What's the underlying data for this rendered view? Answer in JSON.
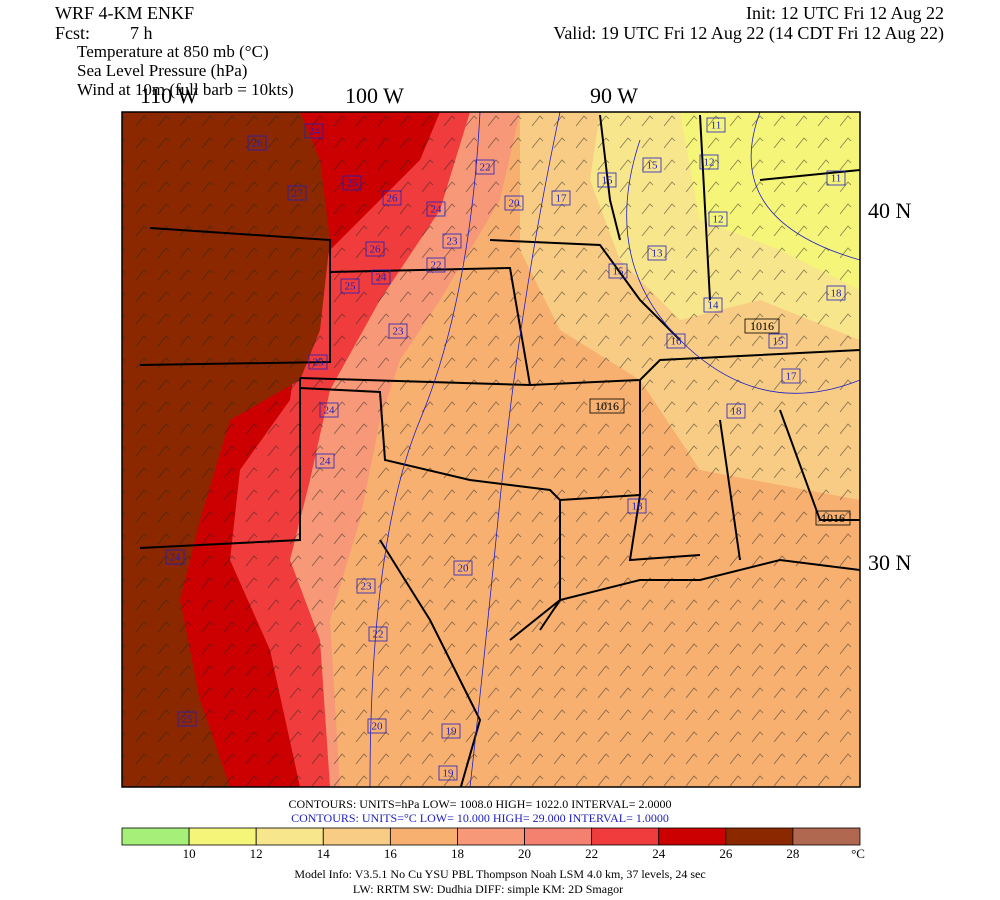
{
  "header": {
    "model": "WRF 4-KM ENKF",
    "forecast_label": "Fcst:",
    "forecast_hours": "7 h",
    "init": "Init: 12 UTC Fri 12 Aug 22",
    "valid": "Valid: 19 UTC Fri 12 Aug 22 (14 CDT Fri 12 Aug 22)",
    "fields": [
      "Temperature at 850 mb (°C)",
      "Sea Level Pressure (hPa)",
      "Wind at 10m (full barb = 10kts)"
    ]
  },
  "map": {
    "longitude_labels": [
      "110 W",
      "100 W",
      "90 W"
    ],
    "latitude_labels": [
      "40 N",
      "30 N"
    ],
    "temperature_labels": [
      "26",
      "24",
      "27",
      "25",
      "26",
      "24",
      "23",
      "22",
      "26",
      "24",
      "22",
      "25",
      "23",
      "25",
      "20",
      "17",
      "15",
      "15",
      "12",
      "11",
      "11",
      "12",
      "13",
      "15",
      "14",
      "16",
      "15",
      "18",
      "17",
      "18",
      "24",
      "24",
      "18",
      "24",
      "23",
      "20",
      "22",
      "25",
      "20",
      "19",
      "19"
    ],
    "pressure_labels": [
      "1016",
      "1016",
      "1016"
    ]
  },
  "contour_info": {
    "pressure": "CONTOURS:  UNITS=hPa  LOW=   1008.0      HIGH=  1022.0      INTERVAL=    2.0000",
    "temperature": "CONTOURS:  UNITS=°C  LOW=  10.000       HIGH=  29.000      INTERVAL=    1.0000"
  },
  "colorbar": {
    "colors": [
      "#a6f07a",
      "#f5f57a",
      "#f8e68c",
      "#f8cc84",
      "#f7b070",
      "#f79878",
      "#f48070",
      "#f03c3c",
      "#cc0000",
      "#8b2800",
      "#b06850"
    ],
    "labels": [
      "10",
      "12",
      "14",
      "16",
      "18",
      "20",
      "22",
      "24",
      "26",
      "28"
    ],
    "unit": "°C"
  },
  "footer": [
    "Model Info: V3.5.1    No Cu    YSU PBL   Thompson     Noah LSM  4.0 km,  37 levels,    24 sec",
    "LW: RRTM  SW: Dudhia  DIFF: simple  KM: 2D Smagor"
  ]
}
